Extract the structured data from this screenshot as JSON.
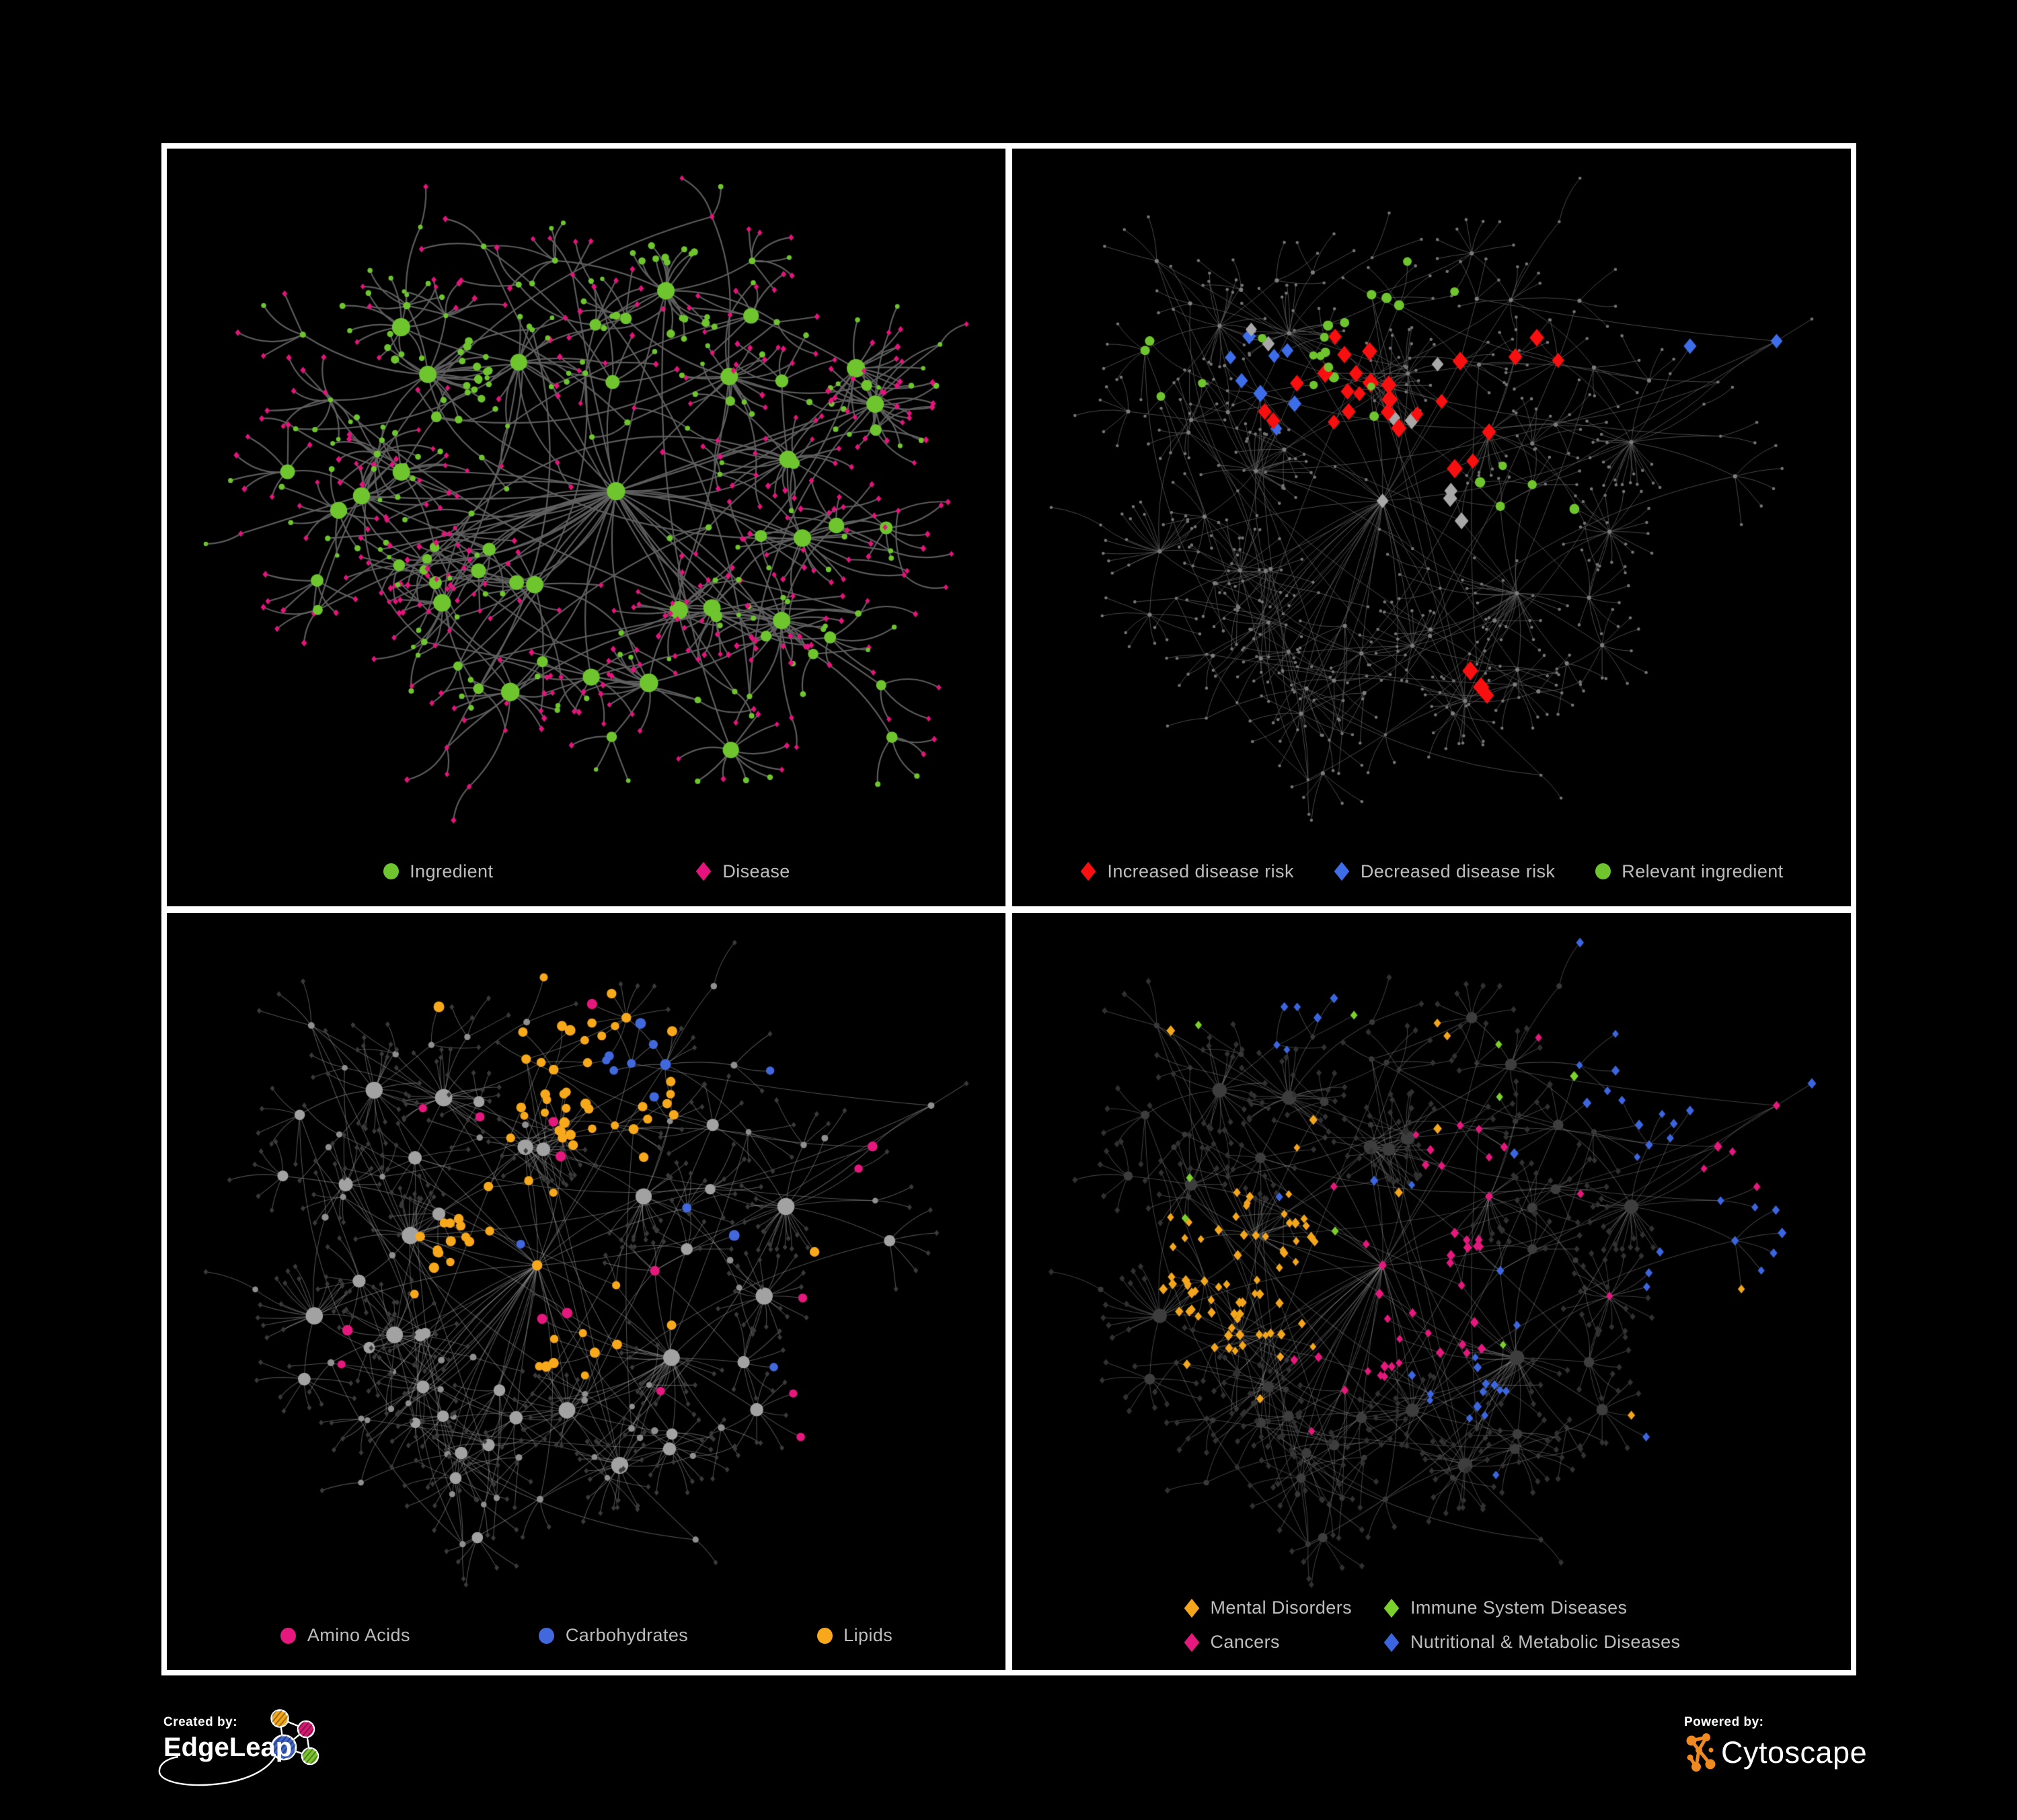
{
  "page": {
    "background": "#000000",
    "frame_color": "#ffffff"
  },
  "panels": [
    {
      "id": "ingredient-disease",
      "legend": [
        {
          "label": "Ingredient",
          "shape": "circle",
          "color": "#6fc52e"
        },
        {
          "label": "Disease",
          "shape": "diamond",
          "color": "#e5147d"
        }
      ],
      "network": {
        "mode": "ingredient-disease",
        "layout": {
          "seed": 1337,
          "nodes": 640,
          "extra_edges": 34
        },
        "edge": {
          "color": "#616161",
          "width": 2.2,
          "opacity": 0.95,
          "curve": 1.0
        },
        "node_colors": {
          "ingredient": "#6fc52e",
          "disease": "#e5147d"
        }
      }
    },
    {
      "id": "disease-risk",
      "legend": [
        {
          "label": "Increased disease risk",
          "shape": "diamond",
          "color": "#f81010"
        },
        {
          "label": "Decreased disease risk",
          "shape": "diamond",
          "color": "#3d6de8"
        },
        {
          "label": "Relevant ingredient",
          "shape": "circle",
          "color": "#6fc52e"
        }
      ],
      "network": {
        "mode": "highlight",
        "layout": {
          "seed": 4242,
          "nodes": 700,
          "extra_edges": 52
        },
        "edge": {
          "color": "#5a5a5a",
          "width": 0.9,
          "opacity": 0.9,
          "curve": 0.5
        },
        "base": {
          "hub": "#7d7d7d",
          "leaf": "#757575"
        },
        "highlights": [
          {
            "label": "increased-risk",
            "color": "#f81010",
            "shape": "diamond",
            "size": 13,
            "groups": [
              {
                "c": [
                  0.4,
                  0.34
                ],
                "n": 13,
                "s": 0.08
              },
              {
                "c": [
                  0.53,
                  0.42
                ],
                "n": 8,
                "s": 0.07
              },
              {
                "c": [
                  0.64,
                  0.3
                ],
                "n": 3,
                "s": 0.04
              },
              {
                "c": [
                  0.6,
                  0.78
                ],
                "n": 3,
                "s": 0.05
              },
              {
                "c": [
                  0.3,
                  0.4
                ],
                "n": 2,
                "s": 0.03
              }
            ]
          },
          {
            "label": "decreased-risk",
            "color": "#3d6de8",
            "shape": "diamond",
            "size": 11.5,
            "groups": [
              {
                "c": [
                  0.3,
                  0.37
                ],
                "n": 6,
                "s": 0.05
              },
              {
                "c": [
                  0.87,
                  0.27
                ],
                "n": 2,
                "s": 0.012
              },
              {
                "c": [
                  0.27,
                  0.3
                ],
                "n": 2,
                "s": 0.03
              }
            ]
          },
          {
            "label": "unchanged-risk",
            "color": "#a8a8a8",
            "shape": "diamond",
            "size": 11.5,
            "groups": [
              {
                "c": [
                  0.45,
                  0.42
                ],
                "n": 5,
                "s": 0.1
              },
              {
                "c": [
                  0.31,
                  0.28
                ],
                "n": 2,
                "s": 0.03
              },
              {
                "c": [
                  0.56,
                  0.6
                ],
                "n": 2,
                "s": 0.05
              }
            ]
          },
          {
            "label": "relevant-ingredient",
            "color": "#6fc52e",
            "shape": "circle",
            "size": 6.8,
            "groups": [
              {
                "c": [
                  0.37,
                  0.31
                ],
                "n": 14,
                "s": 0.09
              },
              {
                "c": [
                  0.18,
                  0.3
                ],
                "n": 4,
                "s": 0.06
              },
              {
                "c": [
                  0.6,
                  0.52
                ],
                "n": 5,
                "s": 0.06
              },
              {
                "c": [
                  0.5,
                  0.2
                ],
                "n": 3,
                "s": 0.05
              }
            ]
          }
        ]
      }
    },
    {
      "id": "nutrient-categories",
      "legend": [
        {
          "label": "Amino Acids",
          "shape": "circle",
          "color": "#e5187d"
        },
        {
          "label": "Carbohydrates",
          "shape": "circle",
          "color": "#4169dd"
        },
        {
          "label": "Lipids",
          "shape": "circle",
          "color": "#f7a81b"
        }
      ],
      "network": {
        "mode": "category-circles",
        "layout": {
          "seed": 4242,
          "nodes": 700,
          "extra_edges": 52
        },
        "edge": {
          "color": "#9e9e9e",
          "width": 1.1,
          "opacity": 0.5,
          "curve": 0.5
        },
        "base": {
          "hub": "#a2a2a2",
          "mid": "#8f8f8f",
          "leaf": "#3a3a3a"
        },
        "highlights": [
          {
            "label": "amino-acids",
            "color": "#e5187d",
            "shape": "circle",
            "size": 7,
            "groups": [
              {
                "c": [
                  0.5,
                  0.45
                ],
                "n": 16,
                "s": 0.42
              }
            ]
          },
          {
            "label": "carbohydrates",
            "color": "#4169dd",
            "shape": "circle",
            "size": 7,
            "groups": [
              {
                "c": [
                  0.57,
                  0.22
                ],
                "n": 8,
                "s": 0.045
              },
              {
                "c": [
                  0.5,
                  0.5
                ],
                "n": 5,
                "s": 0.4
              }
            ]
          },
          {
            "label": "lipids",
            "color": "#f7a81b",
            "shape": "circle",
            "size": 7,
            "groups": [
              {
                "c": [
                  0.52,
                  0.26
                ],
                "n": 38,
                "s": 0.06
              },
              {
                "c": [
                  0.36,
                  0.5
                ],
                "n": 16,
                "s": 0.05
              },
              {
                "c": [
                  0.5,
                  0.63
                ],
                "n": 8,
                "s": 0.045
              },
              {
                "c": [
                  0.5,
                  0.4
                ],
                "n": 12,
                "s": 0.35
              }
            ]
          }
        ]
      }
    },
    {
      "id": "disease-categories",
      "legend": [
        {
          "label": "Mental Disorders",
          "shape": "diamond",
          "color": "#f3a61c"
        },
        {
          "label": "Immune System Diseases",
          "shape": "diamond",
          "color": "#7cd02c"
        },
        {
          "label": "Cancers",
          "shape": "diamond",
          "color": "#e5187d"
        },
        {
          "label": "Nutritional & Metabolic Diseases",
          "shape": "diamond",
          "color": "#3c66df"
        }
      ],
      "network": {
        "mode": "category-diamonds",
        "layout": {
          "seed": 4242,
          "nodes": 700,
          "extra_edges": 52
        },
        "edge": {
          "color": "#9e9e9e",
          "width": 1.05,
          "opacity": 0.4,
          "curve": 0.5
        },
        "base": {
          "hub": "#3d3d3d",
          "mid": "#383838",
          "leaf": "#313131"
        },
        "highlights": [
          {
            "label": "mental-disorders",
            "color": "#f3a61c",
            "shape": "diamond",
            "size": 7,
            "groups": [
              {
                "c": [
                  0.28,
                  0.54
                ],
                "n": 66,
                "s": 0.065
              },
              {
                "c": [
                  0.5,
                  0.45
                ],
                "n": 14,
                "s": 0.42
              }
            ]
          },
          {
            "label": "immune-system-diseases",
            "color": "#7cd02c",
            "shape": "diamond",
            "size": 7,
            "groups": [
              {
                "c": [
                  0.42,
                  0.44
                ],
                "n": 9,
                "s": 0.33
              }
            ]
          },
          {
            "label": "cancers",
            "color": "#e5187d",
            "shape": "diamond",
            "size": 7,
            "groups": [
              {
                "c": [
                  0.47,
                  0.57
                ],
                "n": 28,
                "s": 0.07
              },
              {
                "c": [
                  0.52,
                  0.37
                ],
                "n": 8,
                "s": 0.05
              },
              {
                "c": [
                  0.88,
                  0.33
                ],
                "n": 5,
                "s": 0.025
              },
              {
                "c": [
                  0.5,
                  0.5
                ],
                "n": 8,
                "s": 0.4
              }
            ]
          },
          {
            "label": "nutritional-metabolic-diseases",
            "color": "#3c66df",
            "shape": "diamond",
            "size": 7,
            "groups": [
              {
                "c": [
                  0.55,
                  0.71
                ],
                "n": 12,
                "s": 0.04
              },
              {
                "c": [
                  0.8,
                  0.36
                ],
                "n": 10,
                "s": 0.07
              },
              {
                "c": [
                  0.32,
                  0.1
                ],
                "n": 6,
                "s": 0.1
              },
              {
                "c": [
                  0.84,
                  0.16
                ],
                "n": 6,
                "s": 0.07
              },
              {
                "c": [
                  0.62,
                  0.5
                ],
                "n": 18,
                "s": 0.42
              }
            ]
          }
        ]
      }
    }
  ],
  "footer": {
    "created_by": {
      "label": "Created by:",
      "brand": "EdgeLeap",
      "logo_colors": {
        "node_orange": "#f5a81c",
        "node_pink": "#d61872",
        "node_blue": "#3e64c8",
        "node_green": "#7cc32f",
        "stroke": "#ffffff"
      }
    },
    "powered_by": {
      "label": "Powered by:",
      "brand": "Cytoscape",
      "logo_color": "#f0891f"
    }
  }
}
